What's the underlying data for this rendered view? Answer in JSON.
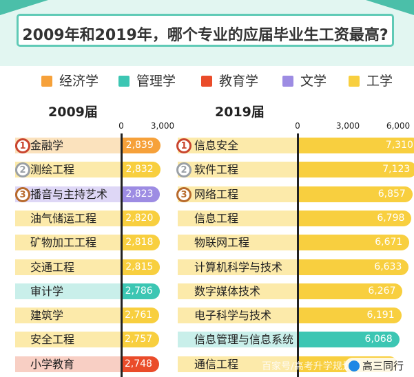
{
  "title": "2009年和2019年，哪个专业的应届毕业生工资最高?",
  "legend": [
    {
      "label": "经济学",
      "color": "#f6a13a"
    },
    {
      "label": "管理学",
      "color": "#3cc6b3"
    },
    {
      "label": "教育学",
      "color": "#ea4c2a"
    },
    {
      "label": "文学",
      "color": "#9d8ce3"
    },
    {
      "label": "工学",
      "color": "#f8cf3f"
    }
  ],
  "chart_data": [
    {
      "type": "bar",
      "title": "2009届",
      "xlim": [
        0,
        3000
      ],
      "xticks": [
        "0",
        "3,000"
      ],
      "categories": [
        "金融学",
        "测绘工程",
        "播音与主持艺术",
        "油气储运工程",
        "矿物加工工程",
        "交通工程",
        "审计学",
        "建筑学",
        "安全工程",
        "小学教育"
      ],
      "values": [
        2839,
        2832,
        2823,
        2820,
        2818,
        2815,
        2786,
        2761,
        2757,
        2748
      ],
      "value_labels": [
        "2,839",
        "2,832",
        "2,823",
        "2,820",
        "2,818",
        "2,815",
        "2,786",
        "2,761",
        "2,757",
        "2,748"
      ],
      "fields": [
        "经济学",
        "工学",
        "文学",
        "工学",
        "工学",
        "工学",
        "管理学",
        "工学",
        "工学",
        "教育学"
      ],
      "ranks": [
        "1",
        "2",
        "3",
        "",
        "",
        "",
        "",
        "",
        "",
        ""
      ]
    },
    {
      "type": "bar",
      "title": "2019届",
      "xlim": [
        0,
        6000
      ],
      "xticks": [
        "0",
        "3,000",
        "6,000"
      ],
      "categories": [
        "信息安全",
        "软件工程",
        "网络工程",
        "信息工程",
        "物联网工程",
        "计算机科学与技术",
        "数字媒体技术",
        "电子科学与技术",
        "信息管理与信息系统",
        "通信工程"
      ],
      "values": [
        7310,
        7123,
        6857,
        6798,
        6671,
        6633,
        6267,
        6191,
        6068,
        5959
      ],
      "value_labels": [
        "7,310",
        "7,123",
        "6,857",
        "6,798",
        "6,671",
        "6,633",
        "6,267",
        "6,191",
        "6,068",
        ""
      ],
      "fields": [
        "工学",
        "工学",
        "工学",
        "工学",
        "工学",
        "工学",
        "工学",
        "工学",
        "管理学",
        "工学"
      ],
      "ranks": [
        "1",
        "2",
        "3",
        "",
        "",
        "",
        "",
        "",
        "",
        ""
      ]
    }
  ],
  "watermark": {
    "text": "百家号/高考升学规划师"
  },
  "badge": {
    "text": "高三同行"
  }
}
